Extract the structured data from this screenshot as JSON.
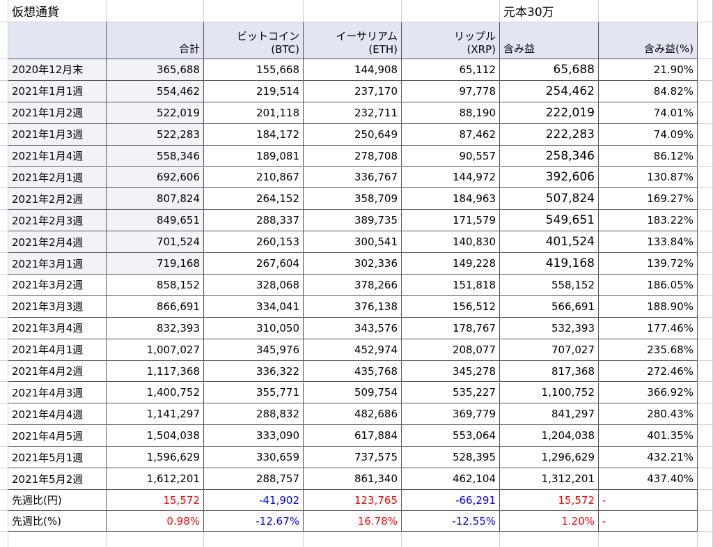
{
  "header": {
    "title": "仮想通貨",
    "note": "元本30万"
  },
  "table": {
    "headers": [
      [
        "合計"
      ],
      [
        "ビットコイン",
        "(BTC)"
      ],
      [
        "イーサリアム",
        "(ETH)"
      ],
      [
        "リップル",
        "(XRP)"
      ],
      [
        "含み益"
      ],
      [
        "含み益(%)"
      ]
    ],
    "rows": [
      [
        "2020年12月末",
        "365,688",
        "155,668",
        "144,908",
        "65,112",
        "65,688",
        "21.90%"
      ],
      [
        "2021年1月1週",
        "554,462",
        "219,514",
        "237,170",
        "97,778",
        "254,462",
        "84.82%"
      ],
      [
        "2021年1月2週",
        "522,019",
        "201,118",
        "232,711",
        "88,190",
        "222,019",
        "74.01%"
      ],
      [
        "2021年1月3週",
        "522,283",
        "184,172",
        "250,649",
        "87,462",
        "222,283",
        "74.09%"
      ],
      [
        "2021年1月4週",
        "558,346",
        "189,081",
        "278,708",
        "90,557",
        "258,346",
        "86.12%"
      ],
      [
        "2021年2月1週",
        "692,606",
        "210,867",
        "336,767",
        "144,972",
        "392,606",
        "130.87%"
      ],
      [
        "2021年2月2週",
        "807,824",
        "264,152",
        "358,709",
        "184,963",
        "507,824",
        "169.27%"
      ],
      [
        "2021年2月3週",
        "849,651",
        "288,337",
        "389,735",
        "171,579",
        "549,651",
        "183.22%"
      ],
      [
        "2021年2月4週",
        "701,524",
        "260,153",
        "300,541",
        "140,830",
        "401,524",
        "133.84%"
      ],
      [
        "2021年3月1週",
        "719,168",
        "267,604",
        "302,336",
        "149,228",
        "419,168",
        "139.72%"
      ],
      [
        "2021年3月2週",
        "858,152",
        "328,068",
        "378,266",
        "151,818",
        "558,152",
        "186.05%"
      ],
      [
        "2021年3月3週",
        "866,691",
        "334,041",
        "376,138",
        "156,512",
        "566,691",
        "188.90%"
      ],
      [
        "2021年3月4週",
        "832,393",
        "310,050",
        "343,576",
        "178,767",
        "532,393",
        "177.46%"
      ],
      [
        "2021年4月1週",
        "1,007,027",
        "345,976",
        "452,974",
        "208,077",
        "707,027",
        "235.68%"
      ],
      [
        "2021年4月2週",
        "1,117,368",
        "336,322",
        "435,768",
        "345,278",
        "817,368",
        "272.46%"
      ],
      [
        "2021年4月3週",
        "1,400,752",
        "355,771",
        "509,754",
        "535,227",
        "1,100,752",
        "366.92%"
      ],
      [
        "2021年4月4週",
        "1,141,297",
        "288,832",
        "482,686",
        "369,779",
        "841,297",
        "280.43%"
      ],
      [
        "2021年4月5週",
        "1,504,038",
        "333,090",
        "617,884",
        "553,064",
        "1,204,038",
        "401.35%"
      ],
      [
        "2021年5月1週",
        "1,596,629",
        "330,659",
        "737,575",
        "528,395",
        "1,296,629",
        "432.21%"
      ],
      [
        "2021年5月2週",
        "1,612,201",
        "288,757",
        "861,340",
        "462,104",
        "1,312,201",
        "437.40%"
      ]
    ],
    "footer_rows": [
      [
        "先週比(円)",
        "15,572",
        "-41,902",
        "123,765",
        "-66,291",
        "15,572",
        "-"
      ],
      [
        "先週比(%)",
        "0.98%",
        "-12.67%",
        "16.78%",
        "-12.55%",
        "1.20%",
        "-"
      ]
    ]
  }
}
